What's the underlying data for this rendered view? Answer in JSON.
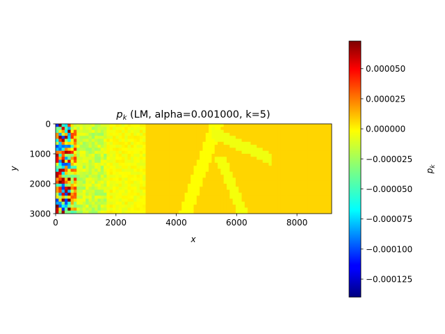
{
  "chart_data": {
    "type": "heatmap",
    "title_symbol": "p",
    "title_symbol_sub": "k",
    "title_rest": " (LM, alpha=0.001000, k=5)",
    "xlabel": "x",
    "ylabel": "y",
    "xlim": [
      0,
      9150
    ],
    "ylim": [
      3000,
      0
    ],
    "x_ticks": [
      0,
      2000,
      4000,
      6000,
      8000
    ],
    "x_tick_labels": [
      "0",
      "2000",
      "4000",
      "6000",
      "8000"
    ],
    "y_ticks": [
      0,
      1000,
      2000,
      3000
    ],
    "y_tick_labels": [
      "0",
      "1000",
      "2000",
      "3000"
    ],
    "colormap": "jet",
    "colorbar": {
      "label_symbol": "p",
      "label_sub": "k",
      "vmin": -0.00014,
      "vmax": 7.3e-05,
      "ticks": [
        5e-05,
        2.5e-05,
        0.0,
        -2.5e-05,
        -5e-05,
        -7.5e-05,
        -0.0001,
        -0.000125
      ],
      "tick_labels": [
        "0.000050",
        "0.000025",
        "0.000000",
        "−0.000025",
        "−0.000050",
        "−0.000075",
        "−0.000100",
        "−0.000125"
      ]
    },
    "grid": false
  }
}
